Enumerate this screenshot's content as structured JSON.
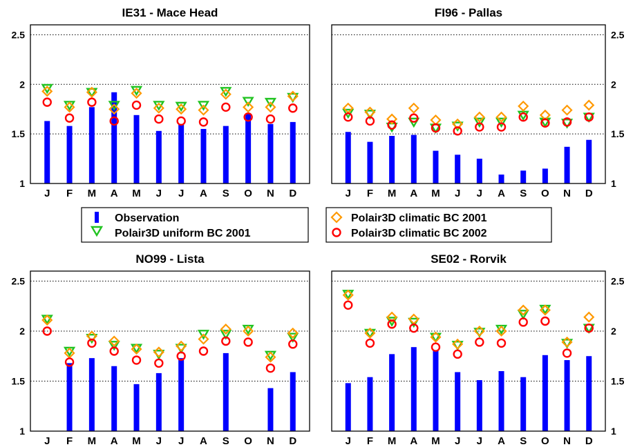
{
  "legend": {
    "observation": "Observation",
    "uniform_2001": "Polair3D  uniform BC 2001",
    "climatic_2001": "Polair3D climatic BC 2001",
    "climatic_2002": "Polair3D climatic BC 2002"
  },
  "colors": {
    "observation": "#0000ff",
    "uniform_2001": "#22c322",
    "climatic_2001": "#ff9900",
    "climatic_2002": "#ff0000"
  },
  "chart_data": [
    {
      "type": "bar",
      "title": "IE31 - Mace Head",
      "categories": [
        "J",
        "F",
        "M",
        "A",
        "M",
        "J",
        "J",
        "A",
        "S",
        "O",
        "N",
        "D"
      ],
      "ylim": [
        1,
        2.6
      ],
      "yticks": [
        "1",
        "1.5",
        "2",
        "2.5"
      ],
      "y_axis_side": "left",
      "grid": true,
      "series": [
        {
          "name": "Observation",
          "kind": "bar",
          "values": [
            1.63,
            1.58,
            1.77,
            1.92,
            1.69,
            1.53,
            1.6,
            1.55,
            1.58,
            1.7,
            1.6,
            1.62
          ]
        },
        {
          "name": "Polair3D  uniform BC 2001",
          "kind": "triangle",
          "values": [
            1.96,
            1.79,
            1.92,
            1.79,
            1.94,
            1.79,
            1.78,
            1.79,
            1.93,
            1.83,
            1.82,
            1.87
          ]
        },
        {
          "name": "Polair3D climatic BC 2001",
          "kind": "diamond",
          "values": [
            1.93,
            1.77,
            1.92,
            1.75,
            1.91,
            1.76,
            1.75,
            1.74,
            1.9,
            1.77,
            1.77,
            1.88
          ]
        },
        {
          "name": "Polair3D climatic BC 2002",
          "kind": "circle",
          "values": [
            1.82,
            1.66,
            1.82,
            1.63,
            1.79,
            1.65,
            1.63,
            1.62,
            1.77,
            1.67,
            1.65,
            1.76
          ]
        }
      ]
    },
    {
      "type": "bar",
      "title": "FI96 - Pallas",
      "categories": [
        "J",
        "F",
        "M",
        "A",
        "M",
        "J",
        "J",
        "A",
        "S",
        "O",
        "N",
        "D"
      ],
      "ylim": [
        1,
        2.6
      ],
      "yticks": [
        "1",
        "1.5",
        "2",
        "2.5"
      ],
      "y_axis_side": "right",
      "grid": true,
      "series": [
        {
          "name": "Observation",
          "kind": "bar",
          "values": [
            1.52,
            1.42,
            1.48,
            1.49,
            1.33,
            1.29,
            1.25,
            1.09,
            1.13,
            1.15,
            1.37,
            1.44
          ]
        },
        {
          "name": "Polair3D  uniform BC 2001",
          "kind": "triangle",
          "values": [
            1.71,
            1.7,
            1.57,
            1.62,
            1.56,
            1.58,
            1.62,
            1.62,
            1.69,
            1.62,
            1.61,
            1.67
          ]
        },
        {
          "name": "Polair3D climatic BC 2001",
          "kind": "diamond",
          "values": [
            1.76,
            1.72,
            1.65,
            1.76,
            1.64,
            1.6,
            1.67,
            1.67,
            1.78,
            1.69,
            1.74,
            1.79
          ]
        },
        {
          "name": "Polair3D climatic BC 2002",
          "kind": "circle",
          "values": [
            1.67,
            1.63,
            1.59,
            1.66,
            1.56,
            1.53,
            1.57,
            1.57,
            1.67,
            1.61,
            1.62,
            1.67
          ]
        }
      ]
    },
    {
      "type": "bar",
      "title": "NO99 - Lista",
      "categories": [
        "J",
        "F",
        "M",
        "A",
        "M",
        "J",
        "J",
        "A",
        "S",
        "O",
        "N",
        "D"
      ],
      "ylim": [
        1,
        2.6
      ],
      "yticks": [
        "1",
        "1.5",
        "2",
        "2.5"
      ],
      "y_axis_side": "left",
      "grid": true,
      "series": [
        {
          "name": "Observation",
          "kind": "bar",
          "values": [
            null,
            1.68,
            1.73,
            1.65,
            1.47,
            1.58,
            1.73,
            null,
            1.78,
            null,
            1.43,
            1.59
          ]
        },
        {
          "name": "Polair3D  uniform BC 2001",
          "kind": "triangle",
          "values": [
            2.12,
            1.8,
            1.93,
            1.86,
            1.83,
            1.77,
            1.83,
            1.97,
            1.97,
            2.02,
            1.76,
            1.94
          ]
        },
        {
          "name": "Polair3D climatic BC 2001",
          "kind": "diamond",
          "values": [
            2.11,
            1.78,
            1.95,
            1.9,
            1.82,
            1.79,
            1.85,
            1.92,
            2.02,
            2.0,
            1.74,
            1.98
          ]
        },
        {
          "name": "Polair3D climatic BC 2002",
          "kind": "circle",
          "values": [
            2.0,
            1.69,
            1.88,
            1.8,
            1.71,
            1.68,
            1.75,
            1.8,
            1.9,
            1.89,
            1.63,
            1.87
          ]
        }
      ]
    },
    {
      "type": "bar",
      "title": "SE02 - Rorvik",
      "categories": [
        "J",
        "F",
        "M",
        "A",
        "M",
        "J",
        "J",
        "A",
        "S",
        "O",
        "N",
        "D"
      ],
      "ylim": [
        1,
        2.6
      ],
      "yticks": [
        "1",
        "1.5",
        "2",
        "2.5"
      ],
      "y_axis_side": "right",
      "grid": true,
      "series": [
        {
          "name": "Observation",
          "kind": "bar",
          "values": [
            1.48,
            1.54,
            1.77,
            1.84,
            1.81,
            1.59,
            1.51,
            1.6,
            1.54,
            1.76,
            1.71,
            1.75
          ]
        },
        {
          "name": "Polair3D  uniform BC 2001",
          "kind": "triangle",
          "values": [
            2.37,
            1.98,
            2.1,
            2.09,
            1.94,
            1.86,
            1.99,
            2.02,
            2.17,
            2.22,
            1.88,
            2.03
          ]
        },
        {
          "name": "Polair3D climatic BC 2001",
          "kind": "diamond",
          "values": [
            2.36,
            1.98,
            2.14,
            2.12,
            1.94,
            1.87,
            2.0,
            2.0,
            2.21,
            2.21,
            1.89,
            2.14
          ]
        },
        {
          "name": "Polair3D climatic BC 2002",
          "kind": "circle",
          "values": [
            2.26,
            1.88,
            2.07,
            2.03,
            1.84,
            1.77,
            1.89,
            1.88,
            2.09,
            2.1,
            1.78,
            2.03
          ]
        }
      ]
    }
  ]
}
